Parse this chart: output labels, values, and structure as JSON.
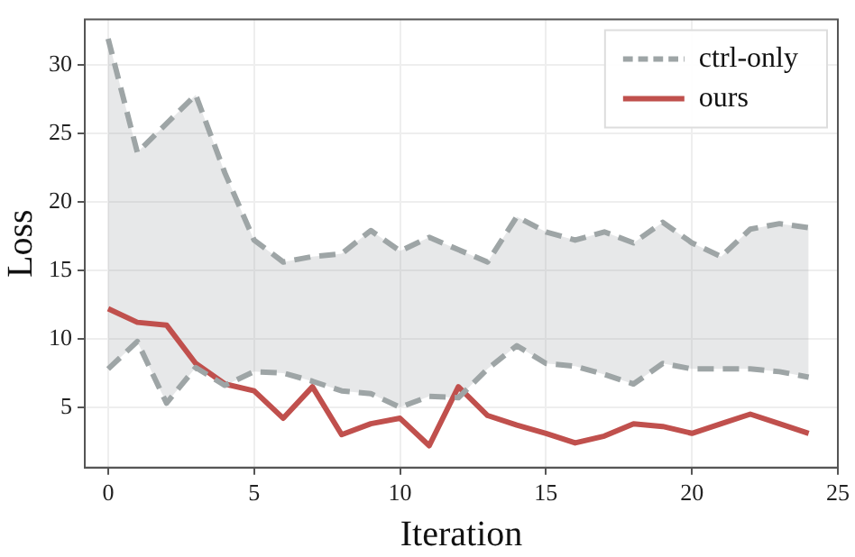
{
  "chart_data": {
    "type": "line",
    "xlabel": "Iteration",
    "ylabel": "Loss",
    "x": [
      0,
      1,
      2,
      3,
      4,
      5,
      6,
      7,
      8,
      9,
      10,
      11,
      12,
      13,
      14,
      15,
      16,
      17,
      18,
      19,
      20,
      21,
      22,
      23,
      24
    ],
    "series": [
      {
        "name": "ctrl-only",
        "color": "#9ea5a6",
        "line_style": "dashed",
        "values": [
          31.9,
          23.6,
          25.7,
          27.8,
          22.1,
          17.2,
          15.6,
          16.0,
          16.2,
          17.9,
          16.4,
          17.4,
          16.5,
          15.6,
          18.9,
          17.8,
          17.2,
          17.8,
          17.0,
          18.5,
          17.0,
          16.0,
          18.0,
          18.4,
          18.1
        ],
        "lower": [
          7.8,
          9.8,
          5.3,
          7.9,
          6.6,
          7.6,
          7.5,
          6.9,
          6.2,
          6.0,
          5.0,
          5.8,
          5.7,
          7.8,
          9.5,
          8.2,
          8.0,
          7.4,
          6.7,
          8.2,
          7.8,
          7.8,
          7.8,
          7.6,
          7.2
        ],
        "upper": [
          31.9,
          23.6,
          25.7,
          27.8,
          22.1,
          17.2,
          15.6,
          16.0,
          16.2,
          17.9,
          16.4,
          17.4,
          16.5,
          15.6,
          18.9,
          17.8,
          17.2,
          17.8,
          17.0,
          18.5,
          17.0,
          16.0,
          18.0,
          18.4,
          18.1
        ]
      },
      {
        "color": "#9ea5a6",
        "line_style": "dashed",
        "values": [
          7.8,
          9.8,
          5.3,
          7.9,
          6.6,
          7.6,
          7.5,
          6.9,
          6.2,
          6.0,
          5.0,
          5.8,
          5.7,
          7.8,
          9.5,
          8.2,
          8.0,
          7.4,
          6.7,
          8.2,
          7.8,
          7.8,
          7.8,
          7.6,
          7.2
        ]
      },
      {
        "name": "ours",
        "color": "#c0504d",
        "line_style": "solid",
        "values": [
          12.2,
          11.2,
          11.0,
          8.2,
          6.7,
          6.2,
          4.2,
          6.5,
          3.0,
          3.8,
          4.2,
          2.2,
          6.5,
          4.4,
          3.7,
          3.1,
          2.4,
          2.9,
          3.8,
          3.6,
          3.1,
          3.8,
          4.5,
          3.8,
          3.1
        ]
      }
    ],
    "xlim": [
      -0.8,
      25
    ],
    "ylim": [
      0.6,
      33.3
    ],
    "xticks": [
      0,
      5,
      10,
      15,
      20,
      25
    ],
    "yticks": [
      5,
      10,
      15,
      20,
      25,
      30
    ],
    "grid": true,
    "legend": "top right",
    "marker": "none"
  }
}
